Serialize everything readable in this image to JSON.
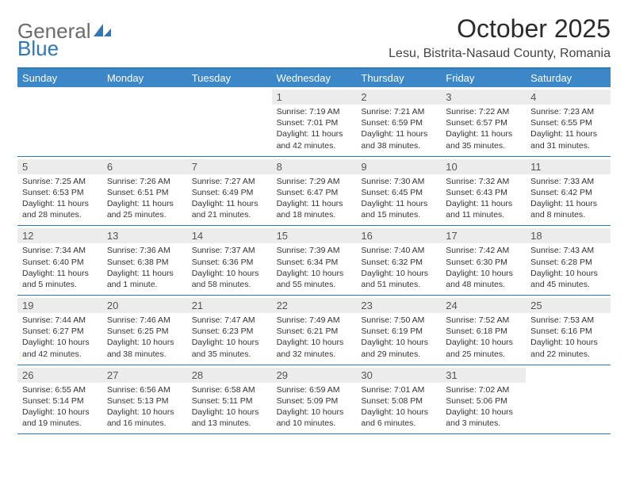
{
  "logo": {
    "part1": "General",
    "part2": "Blue"
  },
  "title": "October 2025",
  "subtitle": "Lesu, Bistrita-Nasaud County, Romania",
  "dow": [
    "Sunday",
    "Monday",
    "Tuesday",
    "Wednesday",
    "Thursday",
    "Friday",
    "Saturday"
  ],
  "colors": {
    "accent": "#3b87c8",
    "rule": "#2f77b5",
    "datebar_bg": "#ececec",
    "bg": "#ffffff",
    "text": "#333333",
    "logo_gray": "#6b6b6b"
  },
  "weeks": [
    [
      {
        "blank": true
      },
      {
        "blank": true
      },
      {
        "blank": true
      },
      {
        "day": "1",
        "sunrise": "Sunrise: 7:19 AM",
        "sunset": "Sunset: 7:01 PM",
        "daylight": "Daylight: 11 hours and 42 minutes."
      },
      {
        "day": "2",
        "sunrise": "Sunrise: 7:21 AM",
        "sunset": "Sunset: 6:59 PM",
        "daylight": "Daylight: 11 hours and 38 minutes."
      },
      {
        "day": "3",
        "sunrise": "Sunrise: 7:22 AM",
        "sunset": "Sunset: 6:57 PM",
        "daylight": "Daylight: 11 hours and 35 minutes."
      },
      {
        "day": "4",
        "sunrise": "Sunrise: 7:23 AM",
        "sunset": "Sunset: 6:55 PM",
        "daylight": "Daylight: 11 hours and 31 minutes."
      }
    ],
    [
      {
        "day": "5",
        "sunrise": "Sunrise: 7:25 AM",
        "sunset": "Sunset: 6:53 PM",
        "daylight": "Daylight: 11 hours and 28 minutes."
      },
      {
        "day": "6",
        "sunrise": "Sunrise: 7:26 AM",
        "sunset": "Sunset: 6:51 PM",
        "daylight": "Daylight: 11 hours and 25 minutes."
      },
      {
        "day": "7",
        "sunrise": "Sunrise: 7:27 AM",
        "sunset": "Sunset: 6:49 PM",
        "daylight": "Daylight: 11 hours and 21 minutes."
      },
      {
        "day": "8",
        "sunrise": "Sunrise: 7:29 AM",
        "sunset": "Sunset: 6:47 PM",
        "daylight": "Daylight: 11 hours and 18 minutes."
      },
      {
        "day": "9",
        "sunrise": "Sunrise: 7:30 AM",
        "sunset": "Sunset: 6:45 PM",
        "daylight": "Daylight: 11 hours and 15 minutes."
      },
      {
        "day": "10",
        "sunrise": "Sunrise: 7:32 AM",
        "sunset": "Sunset: 6:43 PM",
        "daylight": "Daylight: 11 hours and 11 minutes."
      },
      {
        "day": "11",
        "sunrise": "Sunrise: 7:33 AM",
        "sunset": "Sunset: 6:42 PM",
        "daylight": "Daylight: 11 hours and 8 minutes."
      }
    ],
    [
      {
        "day": "12",
        "sunrise": "Sunrise: 7:34 AM",
        "sunset": "Sunset: 6:40 PM",
        "daylight": "Daylight: 11 hours and 5 minutes."
      },
      {
        "day": "13",
        "sunrise": "Sunrise: 7:36 AM",
        "sunset": "Sunset: 6:38 PM",
        "daylight": "Daylight: 11 hours and 1 minute."
      },
      {
        "day": "14",
        "sunrise": "Sunrise: 7:37 AM",
        "sunset": "Sunset: 6:36 PM",
        "daylight": "Daylight: 10 hours and 58 minutes."
      },
      {
        "day": "15",
        "sunrise": "Sunrise: 7:39 AM",
        "sunset": "Sunset: 6:34 PM",
        "daylight": "Daylight: 10 hours and 55 minutes."
      },
      {
        "day": "16",
        "sunrise": "Sunrise: 7:40 AM",
        "sunset": "Sunset: 6:32 PM",
        "daylight": "Daylight: 10 hours and 51 minutes."
      },
      {
        "day": "17",
        "sunrise": "Sunrise: 7:42 AM",
        "sunset": "Sunset: 6:30 PM",
        "daylight": "Daylight: 10 hours and 48 minutes."
      },
      {
        "day": "18",
        "sunrise": "Sunrise: 7:43 AM",
        "sunset": "Sunset: 6:28 PM",
        "daylight": "Daylight: 10 hours and 45 minutes."
      }
    ],
    [
      {
        "day": "19",
        "sunrise": "Sunrise: 7:44 AM",
        "sunset": "Sunset: 6:27 PM",
        "daylight": "Daylight: 10 hours and 42 minutes."
      },
      {
        "day": "20",
        "sunrise": "Sunrise: 7:46 AM",
        "sunset": "Sunset: 6:25 PM",
        "daylight": "Daylight: 10 hours and 38 minutes."
      },
      {
        "day": "21",
        "sunrise": "Sunrise: 7:47 AM",
        "sunset": "Sunset: 6:23 PM",
        "daylight": "Daylight: 10 hours and 35 minutes."
      },
      {
        "day": "22",
        "sunrise": "Sunrise: 7:49 AM",
        "sunset": "Sunset: 6:21 PM",
        "daylight": "Daylight: 10 hours and 32 minutes."
      },
      {
        "day": "23",
        "sunrise": "Sunrise: 7:50 AM",
        "sunset": "Sunset: 6:19 PM",
        "daylight": "Daylight: 10 hours and 29 minutes."
      },
      {
        "day": "24",
        "sunrise": "Sunrise: 7:52 AM",
        "sunset": "Sunset: 6:18 PM",
        "daylight": "Daylight: 10 hours and 25 minutes."
      },
      {
        "day": "25",
        "sunrise": "Sunrise: 7:53 AM",
        "sunset": "Sunset: 6:16 PM",
        "daylight": "Daylight: 10 hours and 22 minutes."
      }
    ],
    [
      {
        "day": "26",
        "sunrise": "Sunrise: 6:55 AM",
        "sunset": "Sunset: 5:14 PM",
        "daylight": "Daylight: 10 hours and 19 minutes."
      },
      {
        "day": "27",
        "sunrise": "Sunrise: 6:56 AM",
        "sunset": "Sunset: 5:13 PM",
        "daylight": "Daylight: 10 hours and 16 minutes."
      },
      {
        "day": "28",
        "sunrise": "Sunrise: 6:58 AM",
        "sunset": "Sunset: 5:11 PM",
        "daylight": "Daylight: 10 hours and 13 minutes."
      },
      {
        "day": "29",
        "sunrise": "Sunrise: 6:59 AM",
        "sunset": "Sunset: 5:09 PM",
        "daylight": "Daylight: 10 hours and 10 minutes."
      },
      {
        "day": "30",
        "sunrise": "Sunrise: 7:01 AM",
        "sunset": "Sunset: 5:08 PM",
        "daylight": "Daylight: 10 hours and 6 minutes."
      },
      {
        "day": "31",
        "sunrise": "Sunrise: 7:02 AM",
        "sunset": "Sunset: 5:06 PM",
        "daylight": "Daylight: 10 hours and 3 minutes."
      },
      {
        "blank": true
      }
    ]
  ]
}
